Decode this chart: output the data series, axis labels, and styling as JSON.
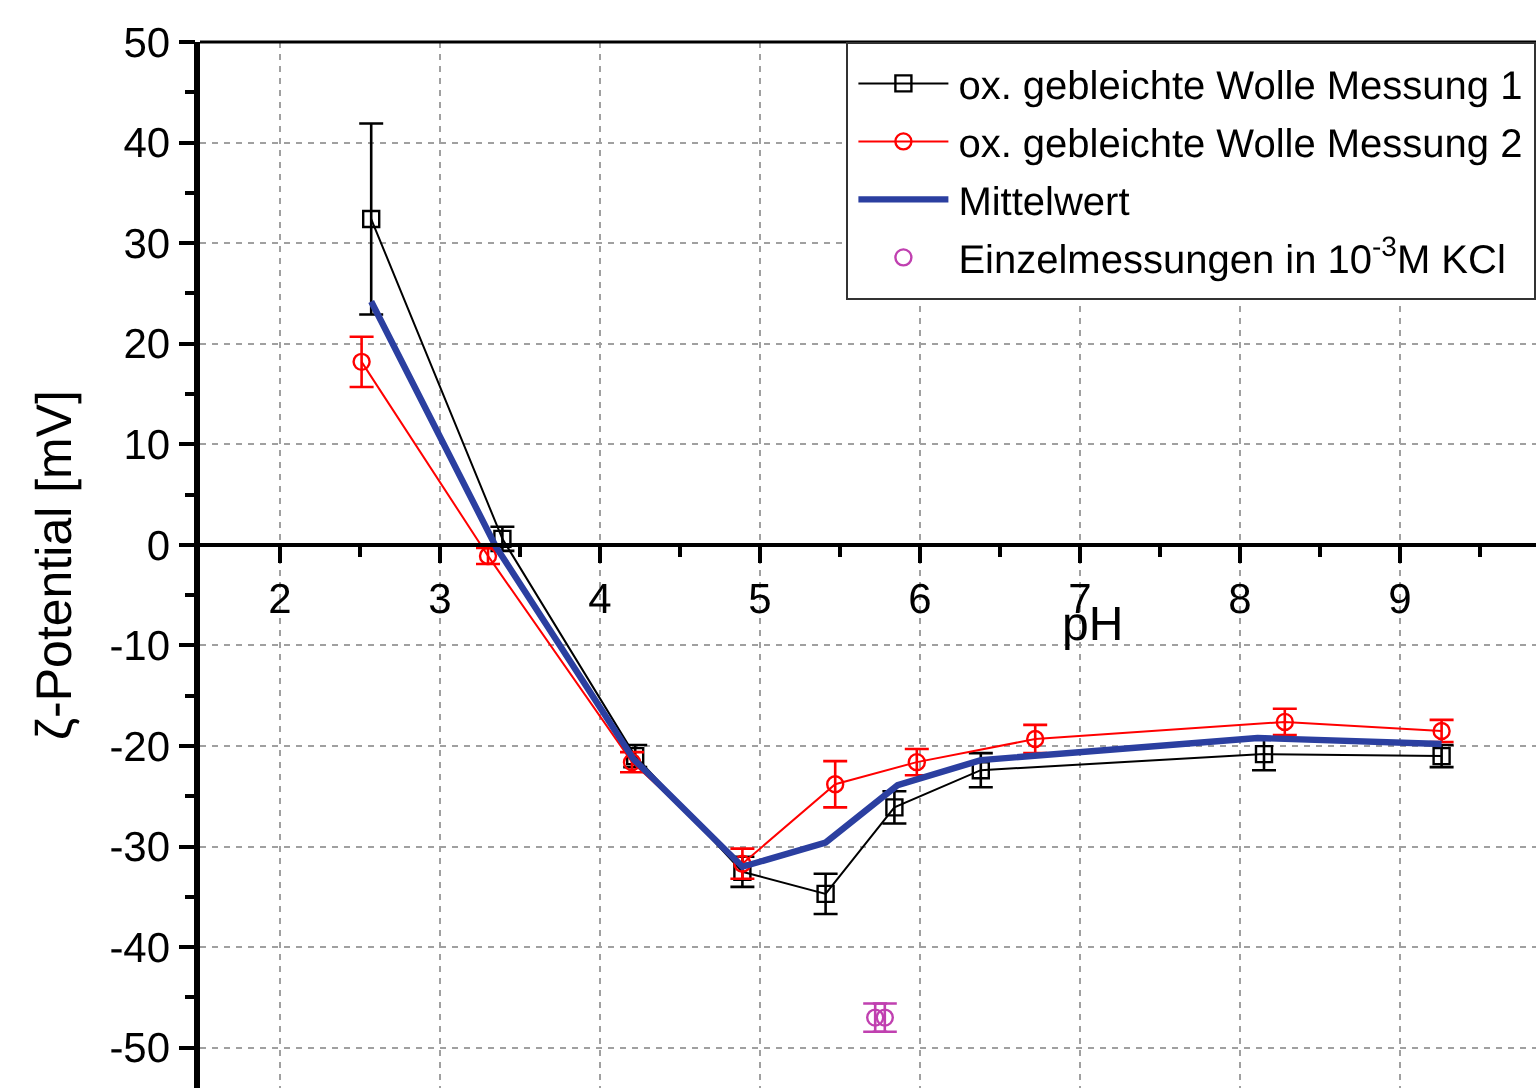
{
  "chart_data": {
    "type": "line",
    "xlabel": "pH",
    "ylabel": "ζ-Potential [mV]",
    "xlim": [
      1.5,
      9.85
    ],
    "ylim": [
      -54,
      50
    ],
    "xticks": [
      2,
      {
        "value": 2.5,
        "label": null
      },
      3,
      {
        "value": 3.5,
        "label": null
      },
      4,
      {
        "value": 4.5,
        "label": null
      },
      5,
      {
        "value": 5.5,
        "label": null
      },
      6,
      {
        "value": 6.5,
        "label": null
      },
      7,
      {
        "value": 7.5,
        "label": null
      },
      8,
      {
        "value": 8.5,
        "label": null
      },
      9,
      {
        "value": 9.5,
        "label": null
      }
    ],
    "yticks": [
      -50,
      {
        "value": -45,
        "label": null
      },
      -40,
      {
        "value": -35,
        "label": null
      },
      -30,
      {
        "value": -25,
        "label": null
      },
      -20,
      {
        "value": -15,
        "label": null
      },
      -10,
      {
        "value": -5,
        "label": null
      },
      0,
      {
        "value": 5,
        "label": null
      },
      10,
      {
        "value": 15,
        "label": null
      },
      20,
      {
        "value": 25,
        "label": null
      },
      30,
      {
        "value": 35,
        "label": null
      },
      40,
      {
        "value": 45,
        "label": null
      },
      50
    ],
    "grid": true,
    "legend": "top right",
    "series": [
      {
        "name": "ox. gebleichte Wolle Messung 1",
        "color": "#000000",
        "marker": "square",
        "x": [
          2.57,
          3.39,
          4.22,
          4.89,
          5.41,
          5.84,
          6.38,
          8.15,
          9.26
        ],
        "values": [
          32.4,
          0.6,
          -21.0,
          -32.5,
          -34.7,
          -26.1,
          -22.4,
          -20.8,
          -21.0
        ],
        "errors": [
          9.5,
          1.2,
          1.1,
          1.5,
          2.0,
          1.6,
          1.7,
          1.6,
          1.1
        ]
      },
      {
        "name": "ox. gebleichte Wolle Messung 2",
        "color": "#ff0000",
        "marker": "circle",
        "x": [
          2.51,
          3.3,
          4.2,
          4.89,
          5.47,
          5.98,
          6.72,
          8.28,
          9.26
        ],
        "values": [
          18.2,
          -1.1,
          -21.6,
          -31.7,
          -23.8,
          -21.6,
          -19.3,
          -17.6,
          -18.5
        ],
        "errors": [
          2.5,
          0.8,
          1.0,
          1.5,
          2.3,
          1.3,
          1.4,
          1.3,
          1.1
        ]
      },
      {
        "name": "Mittelwert",
        "color": "#2b3fa0",
        "marker": "none",
        "x": [
          2.57,
          3.35,
          4.21,
          4.89,
          5.41,
          5.86,
          6.38,
          8.11,
          9.26
        ],
        "values": [
          24.2,
          -0.2,
          -21.3,
          -32.0,
          -29.6,
          -23.9,
          -21.4,
          -19.2,
          -19.8
        ]
      },
      {
        "name": "Einzelmessungen in 10$^{-3}$M KCl",
        "color": "#c040b0",
        "type": "scatter",
        "marker": "circle",
        "x": [
          5.72,
          5.78
        ],
        "values": [
          -47.0,
          -47.0
        ],
        "errors": [
          1.4,
          1.4
        ]
      }
    ]
  }
}
